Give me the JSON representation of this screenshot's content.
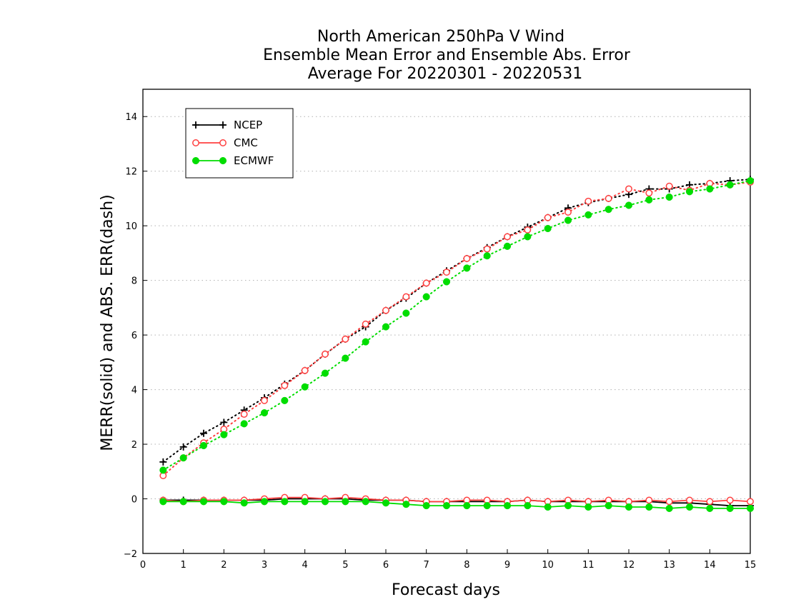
{
  "chart_data": {
    "type": "line",
    "title_lines": [
      "North American 250hPa V Wind",
      "Ensemble Mean Error and Ensemble Abs. Error",
      "Average For 20220301 - 20220531"
    ],
    "xlabel": "Forecast days",
    "ylabel": "MERR(solid) and ABS. ERR(dash)",
    "xlim": [
      0,
      15
    ],
    "ylim": [
      -2,
      15
    ],
    "xticks": [
      0,
      1,
      2,
      3,
      4,
      5,
      6,
      7,
      8,
      9,
      10,
      11,
      12,
      13,
      14,
      15
    ],
    "yticks": [
      -2,
      0,
      2,
      4,
      6,
      8,
      10,
      12,
      14
    ],
    "grid": "horizontal dotted",
    "legend_position": "top-left",
    "x": [
      0.5,
      1,
      1.5,
      2,
      2.5,
      3,
      3.5,
      4,
      4.5,
      5,
      5.5,
      6,
      6.5,
      7,
      7.5,
      8,
      8.5,
      9,
      9.5,
      10,
      10.5,
      11,
      11.5,
      12,
      12.5,
      13,
      13.5,
      14,
      14.5,
      15
    ],
    "series": [
      {
        "name": "NCEP",
        "color": "#000000",
        "marker": "plus",
        "mean_error": [
          -0.05,
          -0.05,
          -0.05,
          -0.05,
          -0.05,
          -0.05,
          0.0,
          0.0,
          0.0,
          0.0,
          -0.05,
          -0.05,
          -0.05,
          -0.1,
          -0.1,
          -0.1,
          -0.1,
          -0.1,
          -0.05,
          -0.1,
          -0.1,
          -0.1,
          -0.1,
          -0.1,
          -0.1,
          -0.15,
          -0.15,
          -0.2,
          -0.25,
          -0.25
        ],
        "abs_error": [
          1.35,
          1.9,
          2.4,
          2.8,
          3.25,
          3.7,
          4.2,
          4.7,
          5.3,
          5.85,
          6.3,
          6.9,
          7.35,
          7.9,
          8.35,
          8.8,
          9.2,
          9.6,
          9.95,
          10.3,
          10.65,
          10.85,
          11.0,
          11.15,
          11.35,
          11.35,
          11.5,
          11.55,
          11.65,
          11.7
        ]
      },
      {
        "name": "CMC",
        "color": "#ff4040",
        "marker": "open-circle",
        "mean_error": [
          -0.05,
          -0.1,
          -0.05,
          -0.05,
          -0.05,
          0.0,
          0.05,
          0.05,
          0.0,
          0.05,
          0.0,
          -0.05,
          -0.05,
          -0.1,
          -0.1,
          -0.05,
          -0.05,
          -0.1,
          -0.05,
          -0.1,
          -0.05,
          -0.1,
          -0.05,
          -0.1,
          -0.05,
          -0.1,
          -0.05,
          -0.1,
          -0.05,
          -0.1
        ],
        "abs_error": [
          0.85,
          1.5,
          2.05,
          2.55,
          3.1,
          3.6,
          4.15,
          4.7,
          5.3,
          5.85,
          6.4,
          6.9,
          7.4,
          7.9,
          8.3,
          8.8,
          9.15,
          9.6,
          9.85,
          10.3,
          10.5,
          10.9,
          11.0,
          11.35,
          11.2,
          11.45,
          11.3,
          11.55,
          11.5,
          11.6
        ]
      },
      {
        "name": "ECMWF",
        "color": "#00dd00",
        "marker": "filled-circle",
        "mean_error": [
          -0.1,
          -0.1,
          -0.1,
          -0.1,
          -0.15,
          -0.1,
          -0.1,
          -0.1,
          -0.1,
          -0.1,
          -0.1,
          -0.15,
          -0.2,
          -0.25,
          -0.25,
          -0.25,
          -0.25,
          -0.25,
          -0.25,
          -0.3,
          -0.25,
          -0.3,
          -0.25,
          -0.3,
          -0.3,
          -0.35,
          -0.3,
          -0.35,
          -0.35,
          -0.35
        ],
        "abs_error": [
          1.05,
          1.5,
          1.95,
          2.35,
          2.75,
          3.15,
          3.6,
          4.1,
          4.6,
          5.15,
          5.75,
          6.3,
          6.8,
          7.4,
          7.95,
          8.45,
          8.9,
          9.25,
          9.6,
          9.9,
          10.2,
          10.4,
          10.6,
          10.75,
          10.95,
          11.05,
          11.25,
          11.35,
          11.5,
          11.65
        ]
      }
    ]
  }
}
